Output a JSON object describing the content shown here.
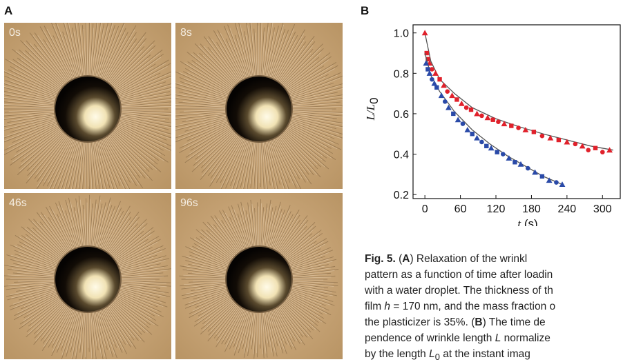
{
  "panels": {
    "a_label": "A",
    "b_label": "B"
  },
  "photos": [
    {
      "time": "0s",
      "wrinkle_level": 1.0
    },
    {
      "time": "8s",
      "wrinkle_level": 0.85
    },
    {
      "time": "46s",
      "wrinkle_level": 0.62
    },
    {
      "time": "96s",
      "wrinkle_level": 0.48
    }
  ],
  "colors": {
    "film": "#c9a677",
    "red_series": "#e0212b",
    "blue_series": "#2a4aa8",
    "fit_line": "#555555"
  },
  "chart_data": {
    "type": "scatter",
    "title": "",
    "xlabel": "t",
    "xlabel_unit": "(s)",
    "ylabel": "L/L",
    "ylabel_sub": "0",
    "xlim": [
      -20,
      330
    ],
    "ylim": [
      0.18,
      1.04
    ],
    "xticks": [
      0,
      60,
      120,
      180,
      240,
      300
    ],
    "yticks": [
      0.2,
      0.4,
      0.6,
      0.8,
      1.0
    ],
    "ytick_labels": [
      "0.2",
      "0.4",
      "0.6",
      "0.8",
      "1.0"
    ],
    "grid": false,
    "series": [
      {
        "marker_color": "#e0212b",
        "points": [
          {
            "x": 0,
            "y": 1.0,
            "m": "tri"
          },
          {
            "x": 3,
            "y": 0.9,
            "m": "sq"
          },
          {
            "x": 5,
            "y": 0.87,
            "m": "sq"
          },
          {
            "x": 8,
            "y": 0.85,
            "m": "tri"
          },
          {
            "x": 12,
            "y": 0.82,
            "m": "dot"
          },
          {
            "x": 18,
            "y": 0.8,
            "m": "tri"
          },
          {
            "x": 25,
            "y": 0.77,
            "m": "sq"
          },
          {
            "x": 32,
            "y": 0.74,
            "m": "tri"
          },
          {
            "x": 38,
            "y": 0.71,
            "m": "dot"
          },
          {
            "x": 46,
            "y": 0.69,
            "m": "tri"
          },
          {
            "x": 54,
            "y": 0.67,
            "m": "sq"
          },
          {
            "x": 62,
            "y": 0.65,
            "m": "tri"
          },
          {
            "x": 70,
            "y": 0.63,
            "m": "dot"
          },
          {
            "x": 78,
            "y": 0.62,
            "m": "sq"
          },
          {
            "x": 88,
            "y": 0.6,
            "m": "tri"
          },
          {
            "x": 96,
            "y": 0.59,
            "m": "dot"
          },
          {
            "x": 106,
            "y": 0.58,
            "m": "tri"
          },
          {
            "x": 115,
            "y": 0.57,
            "m": "sq"
          },
          {
            "x": 124,
            "y": 0.56,
            "m": "dot"
          },
          {
            "x": 134,
            "y": 0.55,
            "m": "tri"
          },
          {
            "x": 146,
            "y": 0.54,
            "m": "sq"
          },
          {
            "x": 158,
            "y": 0.53,
            "m": "dot"
          },
          {
            "x": 170,
            "y": 0.52,
            "m": "tri"
          },
          {
            "x": 184,
            "y": 0.51,
            "m": "sq"
          },
          {
            "x": 198,
            "y": 0.49,
            "m": "dot"
          },
          {
            "x": 212,
            "y": 0.48,
            "m": "tri"
          },
          {
            "x": 226,
            "y": 0.47,
            "m": "sq"
          },
          {
            "x": 240,
            "y": 0.46,
            "m": "tri"
          },
          {
            "x": 254,
            "y": 0.45,
            "m": "dot"
          },
          {
            "x": 266,
            "y": 0.44,
            "m": "tri"
          },
          {
            "x": 276,
            "y": 0.42,
            "m": "dot"
          },
          {
            "x": 288,
            "y": 0.43,
            "m": "sq"
          },
          {
            "x": 300,
            "y": 0.41,
            "m": "dot"
          },
          {
            "x": 312,
            "y": 0.42,
            "m": "tri"
          }
        ],
        "fit": {
          "x": [
            0,
            10,
            25,
            50,
            80,
            120,
            160,
            200,
            240,
            280,
            318
          ],
          "y": [
            1.0,
            0.86,
            0.77,
            0.7,
            0.63,
            0.575,
            0.535,
            0.5,
            0.47,
            0.44,
            0.42
          ]
        }
      },
      {
        "marker_color": "#2a4aa8",
        "points": [
          {
            "x": 2,
            "y": 0.85,
            "m": "tri"
          },
          {
            "x": 5,
            "y": 0.82,
            "m": "sq"
          },
          {
            "x": 8,
            "y": 0.8,
            "m": "tri"
          },
          {
            "x": 12,
            "y": 0.77,
            "m": "dot"
          },
          {
            "x": 16,
            "y": 0.75,
            "m": "tri"
          },
          {
            "x": 20,
            "y": 0.73,
            "m": "sq"
          },
          {
            "x": 28,
            "y": 0.69,
            "m": "tri"
          },
          {
            "x": 34,
            "y": 0.66,
            "m": "dot"
          },
          {
            "x": 40,
            "y": 0.63,
            "m": "tri"
          },
          {
            "x": 48,
            "y": 0.6,
            "m": "sq"
          },
          {
            "x": 56,
            "y": 0.57,
            "m": "tri"
          },
          {
            "x": 64,
            "y": 0.55,
            "m": "dot"
          },
          {
            "x": 72,
            "y": 0.52,
            "m": "tri"
          },
          {
            "x": 80,
            "y": 0.5,
            "m": "sq"
          },
          {
            "x": 88,
            "y": 0.48,
            "m": "tri"
          },
          {
            "x": 96,
            "y": 0.46,
            "m": "dot"
          },
          {
            "x": 104,
            "y": 0.44,
            "m": "sq"
          },
          {
            "x": 112,
            "y": 0.43,
            "m": "tri"
          },
          {
            "x": 122,
            "y": 0.41,
            "m": "sq"
          },
          {
            "x": 132,
            "y": 0.4,
            "m": "dot"
          },
          {
            "x": 142,
            "y": 0.38,
            "m": "tri"
          },
          {
            "x": 152,
            "y": 0.36,
            "m": "sq"
          },
          {
            "x": 162,
            "y": 0.35,
            "m": "tri"
          },
          {
            "x": 174,
            "y": 0.33,
            "m": "dot"
          },
          {
            "x": 186,
            "y": 0.31,
            "m": "tri"
          },
          {
            "x": 198,
            "y": 0.29,
            "m": "sq"
          },
          {
            "x": 210,
            "y": 0.27,
            "m": "tri"
          },
          {
            "x": 222,
            "y": 0.26,
            "m": "dot"
          },
          {
            "x": 232,
            "y": 0.25,
            "m": "tri"
          }
        ],
        "fit": {
          "x": [
            0,
            10,
            25,
            50,
            80,
            110,
            140,
            170,
            200,
            232
          ],
          "y": [
            0.9,
            0.79,
            0.71,
            0.61,
            0.52,
            0.45,
            0.39,
            0.34,
            0.29,
            0.25
          ]
        }
      }
    ]
  },
  "caption": {
    "lines": [
      [
        {
          "t": "Fig. 5.",
          "s": "b"
        },
        {
          "t": " ("
        },
        {
          "t": "A",
          "s": "b"
        },
        {
          "t": ") Relaxation of the wrinkl"
        }
      ],
      [
        {
          "t": "pattern as a function of time after loadin"
        }
      ],
      [
        {
          "t": "with a water droplet. The thickness of th"
        }
      ],
      [
        {
          "t": "film "
        },
        {
          "t": "h",
          "s": "i"
        },
        {
          "t": " = 170 nm, and the mass fraction o"
        }
      ],
      [
        {
          "t": "the plasticizer is 35%. ("
        },
        {
          "t": "B",
          "s": "b"
        },
        {
          "t": ") The time de"
        }
      ],
      [
        {
          "t": "pendence of wrinkle length "
        },
        {
          "t": "L",
          "s": "i"
        },
        {
          "t": " normalize"
        }
      ],
      [
        {
          "t": "by the length "
        },
        {
          "t": "L",
          "s": "i"
        },
        {
          "t": "0",
          "s": "sub"
        },
        {
          "t": " at the instant imag"
        }
      ]
    ]
  }
}
